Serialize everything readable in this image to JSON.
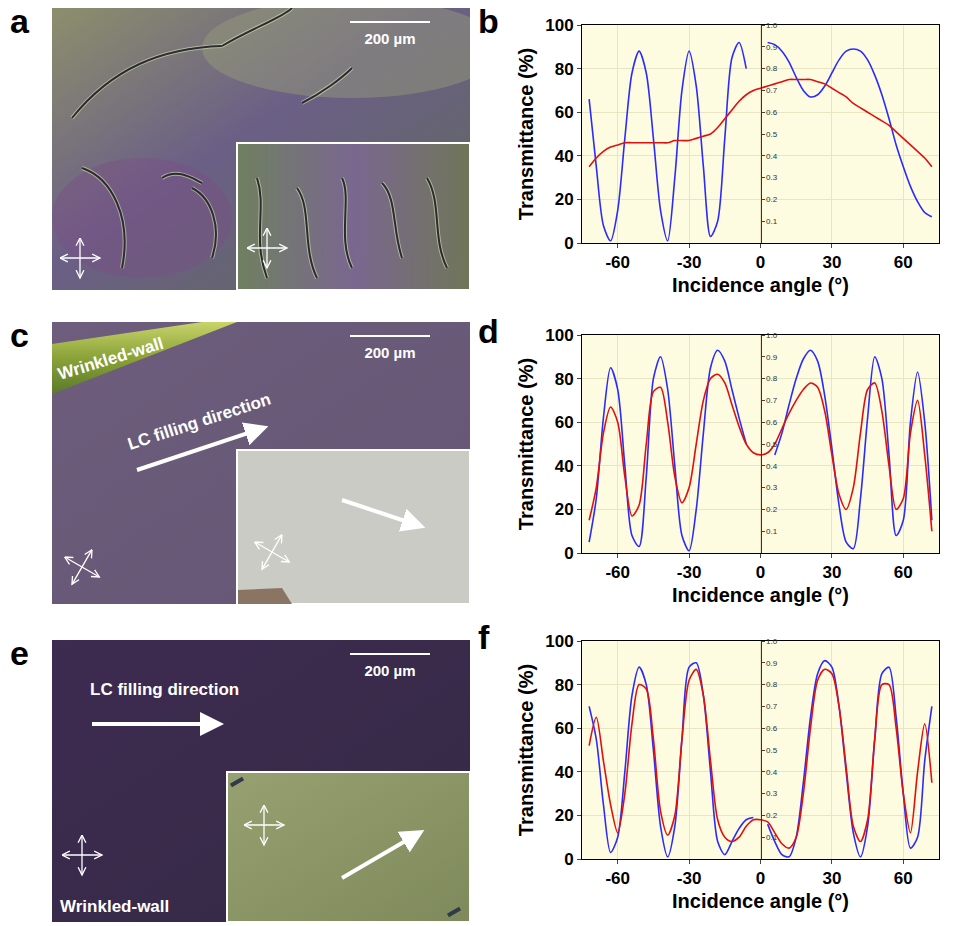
{
  "panels": [
    {
      "label": "a",
      "scale_bar": "200 µm"
    },
    {
      "label": "c",
      "scale_bar": "200 µm",
      "wall_label": "Wrinkled-wall",
      "arrow_label": "LC filling direction"
    },
    {
      "label": "e",
      "scale_bar": "200 µm",
      "wall_label": "Wrinkled-wall",
      "arrow_label": "LC filling direction"
    }
  ],
  "chart_data": [
    {
      "label": "b",
      "type": "line",
      "xlabel": "Incidence angle (°)",
      "ylabel": "Transmittance (%)",
      "x": [
        -72,
        -69,
        -66,
        -63,
        -60,
        -57,
        -54,
        -51,
        -48,
        -45,
        -42,
        -39,
        -36,
        -33,
        -30,
        -27,
        -24,
        -21,
        -18,
        -15,
        -12,
        -9,
        -6,
        -3,
        0,
        3,
        6,
        9,
        12,
        15,
        18,
        21,
        24,
        27,
        30,
        33,
        36,
        39,
        42,
        45,
        48,
        51,
        54,
        57,
        60,
        63,
        66,
        69,
        72
      ],
      "xlim": [
        -75,
        75
      ],
      "xticks": [
        -60,
        -30,
        0,
        30,
        60
      ],
      "ylim": [
        0,
        100
      ],
      "yticks": [
        0,
        20,
        40,
        60,
        80,
        100
      ],
      "y2lim": [
        0,
        1
      ],
      "y2ticks": [
        0.1,
        0.2,
        0.3,
        0.4,
        0.5,
        0.6,
        0.7,
        0.8,
        0.9,
        {
          "value": 1,
          "label": "1.0"
        }
      ],
      "grid": true,
      "series": [
        {
          "color": "#2b2bff",
          "values": [
            66,
            35,
            8,
            1,
            15,
            48,
            78,
            88,
            78,
            48,
            15,
            1,
            30,
            70,
            88,
            72,
            35,
            3,
            10,
            48,
            85,
            92,
            80,
            null,
            null,
            92,
            91,
            88,
            83,
            76,
            70,
            67,
            68,
            72,
            78,
            84,
            88,
            89,
            88,
            84,
            77,
            68,
            57,
            45,
            35,
            26,
            19,
            14,
            12
          ]
        },
        {
          "color": "#e01010",
          "values": [
            35,
            39,
            42,
            44,
            45,
            46,
            46,
            46,
            46,
            46,
            46,
            46,
            47,
            47,
            47,
            48,
            49,
            50,
            53,
            57,
            61,
            65,
            68,
            70,
            71,
            72,
            73,
            74,
            75,
            75,
            75,
            75,
            74,
            73,
            71,
            69,
            67,
            64,
            62,
            60,
            58,
            56,
            54,
            51,
            48,
            45,
            42,
            39,
            35
          ]
        }
      ]
    },
    {
      "label": "d",
      "type": "line",
      "xlabel": "Incidence angle (°)",
      "ylabel": "Transmittance (%)",
      "x": [
        -72,
        -69,
        -66,
        -63,
        -60,
        -57,
        -54,
        -51,
        -48,
        -45,
        -42,
        -39,
        -36,
        -33,
        -30,
        -27,
        -24,
        -21,
        -18,
        -15,
        -12,
        -9,
        -6,
        -3,
        0,
        3,
        6,
        9,
        12,
        15,
        18,
        21,
        24,
        27,
        30,
        33,
        36,
        39,
        42,
        45,
        48,
        51,
        54,
        57,
        60,
        63,
        66,
        69,
        72
      ],
      "xlim": [
        -75,
        75
      ],
      "xticks": [
        -60,
        -30,
        0,
        30,
        60
      ],
      "ylim": [
        0,
        100
      ],
      "yticks": [
        0,
        20,
        40,
        60,
        80,
        100
      ],
      "y2lim": [
        0,
        1
      ],
      "y2ticks": [
        0.1,
        0.2,
        0.3,
        0.4,
        0.5,
        0.6,
        0.7,
        0.8,
        0.9,
        {
          "value": 1,
          "label": "1.0"
        }
      ],
      "grid": true,
      "series": [
        {
          "color": "#2b2bff",
          "values": [
            5,
            25,
            62,
            85,
            75,
            40,
            8,
            3,
            35,
            80,
            90,
            75,
            40,
            8,
            1,
            20,
            55,
            85,
            93,
            88,
            75,
            62,
            50,
            null,
            null,
            null,
            45,
            55,
            68,
            80,
            89,
            93,
            88,
            72,
            48,
            22,
            5,
            2,
            25,
            62,
            90,
            80,
            45,
            8,
            15,
            60,
            83,
            60,
            15
          ]
        },
        {
          "color": "#e01010",
          "values": [
            15,
            30,
            55,
            67,
            60,
            35,
            17,
            22,
            50,
            74,
            76,
            60,
            35,
            23,
            30,
            50,
            70,
            80,
            82,
            78,
            68,
            58,
            50,
            46,
            45,
            46,
            50,
            57,
            64,
            70,
            75,
            78,
            76,
            65,
            45,
            27,
            20,
            30,
            55,
            75,
            78,
            65,
            40,
            20,
            25,
            55,
            70,
            45,
            10
          ]
        }
      ]
    },
    {
      "label": "f",
      "type": "line",
      "xlabel": "Incidence angle (°)",
      "ylabel": "Transmittance (%)",
      "x": [
        -72,
        -69,
        -66,
        -63,
        -60,
        -57,
        -54,
        -51,
        -48,
        -45,
        -42,
        -39,
        -36,
        -33,
        -30,
        -27,
        -24,
        -21,
        -18,
        -15,
        -12,
        -9,
        -6,
        -3,
        0,
        3,
        6,
        9,
        12,
        15,
        18,
        21,
        24,
        27,
        30,
        33,
        36,
        39,
        42,
        45,
        48,
        51,
        54,
        57,
        60,
        63,
        66,
        69,
        72
      ],
      "xlim": [
        -75,
        75
      ],
      "xticks": [
        -60,
        -30,
        0,
        30,
        60
      ],
      "ylim": [
        0,
        100
      ],
      "yticks": [
        0,
        20,
        40,
        60,
        80,
        100
      ],
      "y2lim": [
        0,
        1
      ],
      "y2ticks": [
        0.1,
        0.2,
        0.3,
        0.4,
        0.5,
        0.6,
        0.7,
        0.8,
        0.9,
        {
          "value": 1,
          "label": "1.0"
        }
      ],
      "grid": true,
      "series": [
        {
          "color": "#2b2bff",
          "values": [
            70,
            55,
            25,
            3,
            10,
            40,
            75,
            88,
            80,
            50,
            15,
            1,
            15,
            55,
            88,
            90,
            75,
            40,
            8,
            2,
            8,
            14,
            18,
            19,
            null,
            16,
            8,
            2,
            1,
            10,
            35,
            65,
            85,
            91,
            88,
            70,
            40,
            12,
            1,
            15,
            55,
            85,
            88,
            65,
            30,
            5,
            10,
            45,
            70
          ]
        },
        {
          "color": "#e01010",
          "values": [
            52,
            65,
            45,
            25,
            12,
            30,
            62,
            80,
            78,
            55,
            22,
            11,
            20,
            55,
            82,
            87,
            75,
            45,
            18,
            10,
            8,
            10,
            15,
            18,
            18,
            17,
            12,
            7,
            5,
            10,
            30,
            60,
            82,
            87,
            85,
            70,
            42,
            15,
            8,
            18,
            55,
            80,
            80,
            60,
            30,
            12,
            40,
            62,
            35
          ]
        }
      ]
    }
  ]
}
